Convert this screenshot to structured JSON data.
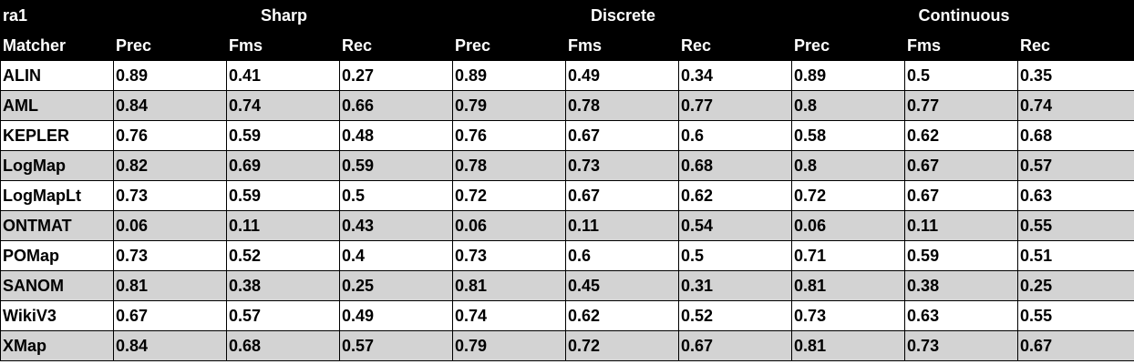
{
  "table": {
    "corner_label": "ra1",
    "groups": [
      "Sharp",
      "Discrete",
      "Continuous"
    ],
    "columns": [
      "Matcher",
      "Prec",
      "Fms",
      "Rec",
      "Prec",
      "Fms",
      "Rec",
      "Prec",
      "Fms",
      "Rec"
    ],
    "rows": [
      [
        "ALIN",
        "0.89",
        "0.41",
        "0.27",
        "0.89",
        "0.49",
        "0.34",
        "0.89",
        "0.5",
        "0.35"
      ],
      [
        "AML",
        "0.84",
        "0.74",
        "0.66",
        "0.79",
        "0.78",
        "0.77",
        "0.8",
        "0.77",
        "0.74"
      ],
      [
        "KEPLER",
        "0.76",
        "0.59",
        "0.48",
        "0.76",
        "0.67",
        "0.6",
        "0.58",
        "0.62",
        "0.68"
      ],
      [
        "LogMap",
        "0.82",
        "0.69",
        "0.59",
        "0.78",
        "0.73",
        "0.68",
        "0.8",
        "0.67",
        "0.57"
      ],
      [
        "LogMapLt",
        "0.73",
        "0.59",
        "0.5",
        "0.72",
        "0.67",
        "0.62",
        "0.72",
        "0.67",
        "0.63"
      ],
      [
        "ONTMAT",
        "0.06",
        "0.11",
        "0.43",
        "0.06",
        "0.11",
        "0.54",
        "0.06",
        "0.11",
        "0.55"
      ],
      [
        "POMap",
        "0.73",
        "0.52",
        "0.4",
        "0.73",
        "0.6",
        "0.5",
        "0.71",
        "0.59",
        "0.51"
      ],
      [
        "SANOM",
        "0.81",
        "0.38",
        "0.25",
        "0.81",
        "0.45",
        "0.31",
        "0.81",
        "0.38",
        "0.25"
      ],
      [
        "WikiV3",
        "0.67",
        "0.57",
        "0.49",
        "0.74",
        "0.62",
        "0.52",
        "0.73",
        "0.63",
        "0.55"
      ],
      [
        "XMap",
        "0.84",
        "0.68",
        "0.57",
        "0.79",
        "0.72",
        "0.67",
        "0.81",
        "0.73",
        "0.67"
      ]
    ]
  },
  "colors": {
    "header_bg": "#000000",
    "header_text": "#ffffff",
    "row_even_bg": "#ffffff",
    "row_odd_bg": "#d3d3d3",
    "grid": "#000000"
  }
}
